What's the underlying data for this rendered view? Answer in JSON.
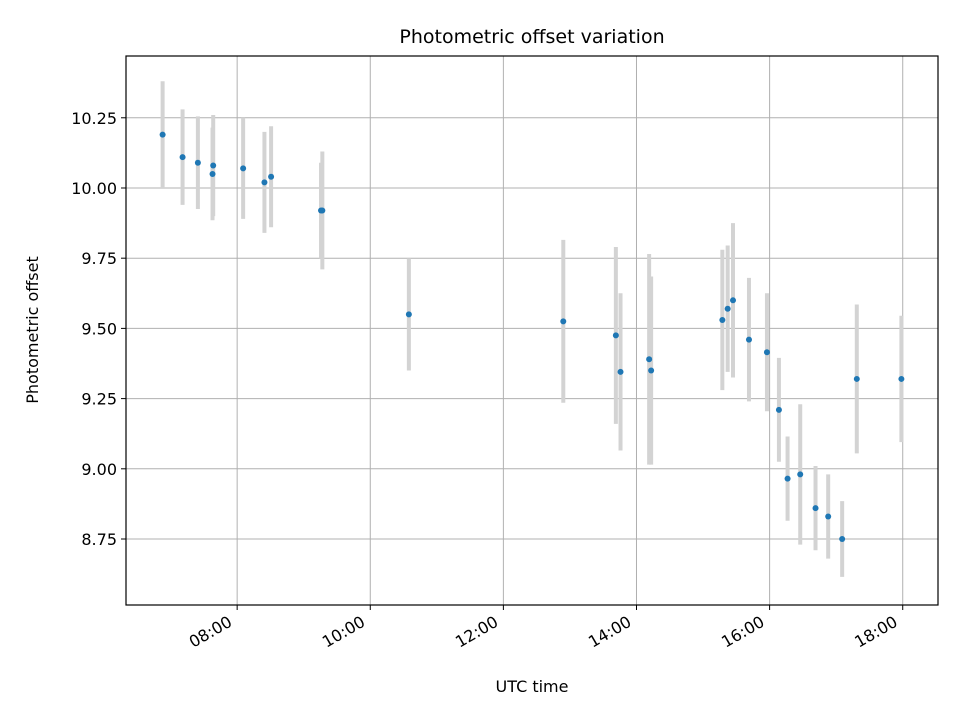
{
  "chart_data": {
    "type": "scatter",
    "title": "Photometric offset variation",
    "xlabel": "UTC time",
    "ylabel": "Photometric offset",
    "x_unit": "hours (UTC)",
    "xlim_hours": [
      6.33,
      18.53
    ],
    "ylim": [
      8.515,
      10.47
    ],
    "grid": true,
    "x_tick_values_hours": [
      8,
      10,
      12,
      14,
      16,
      18
    ],
    "x_tick_labels": [
      "08:00",
      "10:00",
      "12:00",
      "14:00",
      "16:00",
      "18:00"
    ],
    "y_tick_values": [
      8.75,
      9.0,
      9.25,
      9.5,
      9.75,
      10.0,
      10.25
    ],
    "y_tick_labels": [
      "8.75",
      "9.00",
      "9.25",
      "9.50",
      "9.75",
      "10.00",
      "10.25"
    ],
    "point_color": "#1f77b4",
    "errorbar_color": "#d3d3d3",
    "points": [
      {
        "x": 6.88,
        "y": 10.19,
        "err": 0.19
      },
      {
        "x": 7.18,
        "y": 10.11,
        "err": 0.17
      },
      {
        "x": 7.41,
        "y": 10.09,
        "err": 0.165
      },
      {
        "x": 7.64,
        "y": 10.08,
        "err": 0.18
      },
      {
        "x": 7.63,
        "y": 10.05,
        "err": 0.165
      },
      {
        "x": 8.09,
        "y": 10.07,
        "err": 0.18
      },
      {
        "x": 8.41,
        "y": 10.02,
        "err": 0.18
      },
      {
        "x": 8.51,
        "y": 10.04,
        "err": 0.18
      },
      {
        "x": 9.26,
        "y": 9.92,
        "err": 0.17
      },
      {
        "x": 9.28,
        "y": 9.92,
        "err": 0.21
      },
      {
        "x": 10.58,
        "y": 9.55,
        "err": 0.2
      },
      {
        "x": 12.9,
        "y": 9.525,
        "err": 0.29
      },
      {
        "x": 13.69,
        "y": 9.475,
        "err": 0.315
      },
      {
        "x": 13.76,
        "y": 9.345,
        "err": 0.28
      },
      {
        "x": 14.19,
        "y": 9.39,
        "err": 0.375
      },
      {
        "x": 14.22,
        "y": 9.35,
        "err": 0.335
      },
      {
        "x": 15.29,
        "y": 9.53,
        "err": 0.25
      },
      {
        "x": 15.37,
        "y": 9.57,
        "err": 0.225
      },
      {
        "x": 15.45,
        "y": 9.6,
        "err": 0.275
      },
      {
        "x": 15.69,
        "y": 9.46,
        "err": 0.22
      },
      {
        "x": 15.96,
        "y": 9.415,
        "err": 0.21
      },
      {
        "x": 16.14,
        "y": 9.21,
        "err": 0.185
      },
      {
        "x": 16.27,
        "y": 8.965,
        "err": 0.15
      },
      {
        "x": 16.46,
        "y": 8.98,
        "err": 0.25
      },
      {
        "x": 16.69,
        "y": 8.86,
        "err": 0.15
      },
      {
        "x": 16.88,
        "y": 8.83,
        "err": 0.15
      },
      {
        "x": 17.09,
        "y": 8.75,
        "err": 0.135
      },
      {
        "x": 17.31,
        "y": 9.32,
        "err": 0.265
      },
      {
        "x": 17.98,
        "y": 9.32,
        "err": 0.225
      }
    ]
  }
}
